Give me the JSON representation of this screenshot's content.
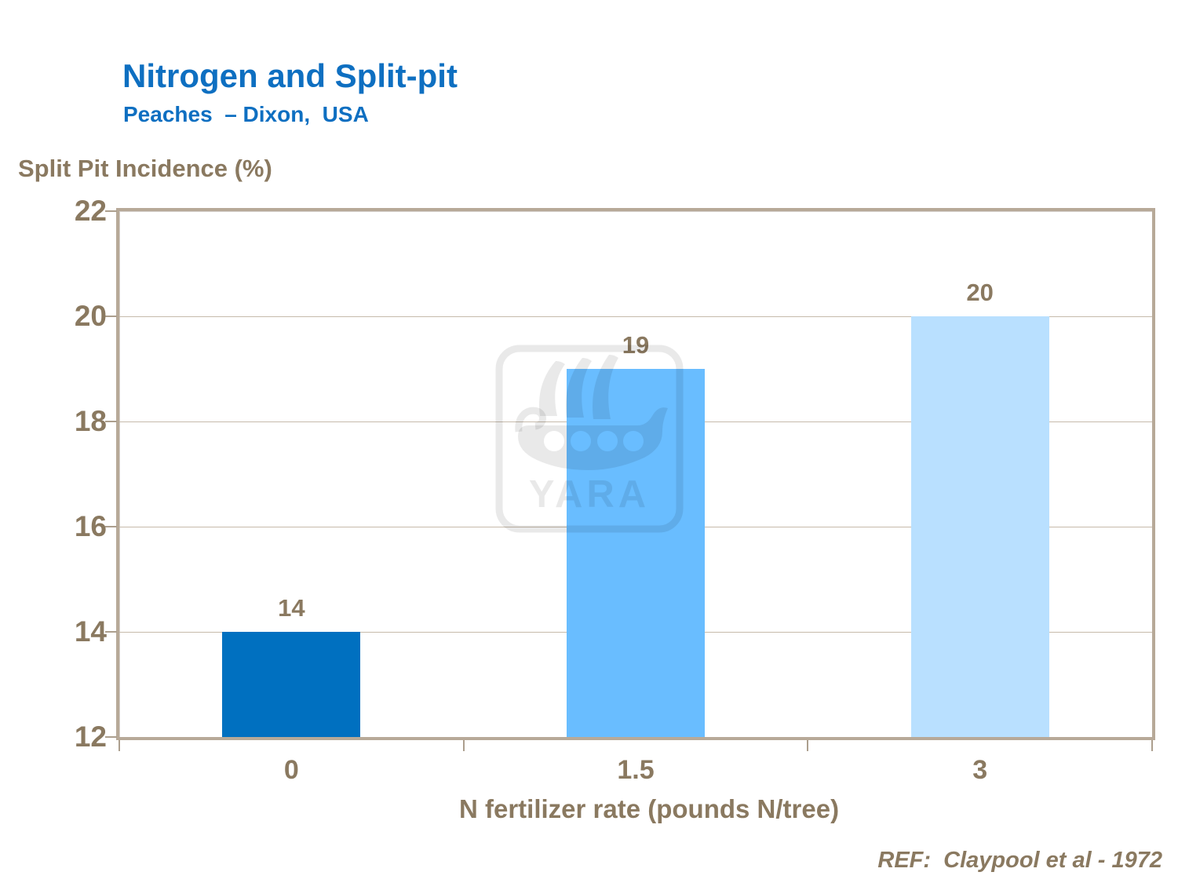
{
  "slide": {
    "title": "Nitrogen and Split-pit",
    "subtitle": "Peaches  – Dixon,  USA",
    "reference": "REF:  Claypool et al - 1972"
  },
  "chart_data": {
    "type": "bar",
    "title": "Split Pit Incidence (%)",
    "categories": [
      "0",
      "1.5",
      "3"
    ],
    "values": [
      14,
      19,
      20
    ],
    "value_labels": [
      "14",
      "19",
      "20"
    ],
    "xlabel": "N fertilizer rate (pounds N/tree)",
    "ylabel": "Split Pit Incidence (%)",
    "ylim": [
      12,
      22
    ],
    "yticks": [
      12,
      14,
      16,
      18,
      20,
      22
    ],
    "grid": true,
    "legend": "none",
    "bar_colors": [
      "#0070C0",
      "#69BDFF",
      "#B9E0FF"
    ]
  },
  "watermark": {
    "logo": "yara-viking-ship-logo",
    "text": "YARA"
  },
  "colors": {
    "title_blue": "#0E6FC1",
    "axis_brown": "#8A7960",
    "plot_border": "#B7A998",
    "gridline": "#C6BAAB",
    "background": "#FFFFFF"
  }
}
